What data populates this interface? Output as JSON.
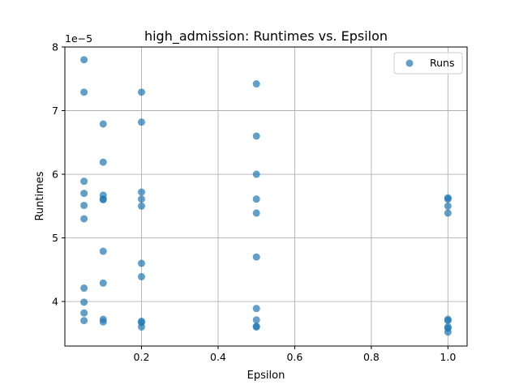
{
  "chart_data": {
    "type": "scatter",
    "title": "high_admission: Runtimes vs. Epsilon",
    "xlabel": "Epsilon",
    "ylabel": "Runtimes",
    "y_scale_label": "1e−5",
    "xlim": [
      0.0,
      1.05
    ],
    "ylim": [
      3.3,
      8.0
    ],
    "x_ticks": [
      0.2,
      0.4,
      0.6,
      0.8,
      1.0
    ],
    "x_tick_labels": [
      "0.2",
      "0.4",
      "0.6",
      "0.8",
      "1.0"
    ],
    "y_ticks": [
      4,
      5,
      6,
      7,
      8
    ],
    "y_tick_labels": [
      "4",
      "5",
      "6",
      "7",
      "8"
    ],
    "grid": true,
    "legend_position": "top-right",
    "color": "#1f77b4",
    "series": [
      {
        "name": "Runs",
        "points": [
          [
            0.05,
            7.8
          ],
          [
            0.05,
            7.29
          ],
          [
            0.05,
            5.89
          ],
          [
            0.05,
            5.7
          ],
          [
            0.05,
            5.51
          ],
          [
            0.05,
            5.3
          ],
          [
            0.05,
            4.21
          ],
          [
            0.05,
            3.99
          ],
          [
            0.05,
            3.82
          ],
          [
            0.05,
            3.7
          ],
          [
            0.1,
            6.79
          ],
          [
            0.1,
            6.19
          ],
          [
            0.1,
            5.67
          ],
          [
            0.1,
            5.61
          ],
          [
            0.1,
            5.6
          ],
          [
            0.1,
            4.79
          ],
          [
            0.1,
            4.29
          ],
          [
            0.1,
            3.72
          ],
          [
            0.1,
            3.68
          ],
          [
            0.2,
            7.29
          ],
          [
            0.2,
            6.82
          ],
          [
            0.2,
            5.72
          ],
          [
            0.2,
            5.61
          ],
          [
            0.2,
            5.5
          ],
          [
            0.2,
            4.6
          ],
          [
            0.2,
            4.39
          ],
          [
            0.2,
            3.69
          ],
          [
            0.2,
            3.67
          ],
          [
            0.2,
            3.6
          ],
          [
            0.5,
            7.42
          ],
          [
            0.5,
            6.6
          ],
          [
            0.5,
            6.0
          ],
          [
            0.5,
            5.61
          ],
          [
            0.5,
            5.39
          ],
          [
            0.5,
            4.7
          ],
          [
            0.5,
            3.89
          ],
          [
            0.5,
            3.71
          ],
          [
            0.5,
            3.61
          ],
          [
            0.5,
            3.6
          ],
          [
            1.0,
            5.63
          ],
          [
            1.0,
            5.61
          ],
          [
            1.0,
            5.5
          ],
          [
            1.0,
            5.39
          ],
          [
            1.0,
            3.72
          ],
          [
            1.0,
            3.7
          ],
          [
            1.0,
            3.6
          ],
          [
            1.0,
            3.58
          ],
          [
            1.0,
            3.52
          ]
        ]
      }
    ]
  }
}
